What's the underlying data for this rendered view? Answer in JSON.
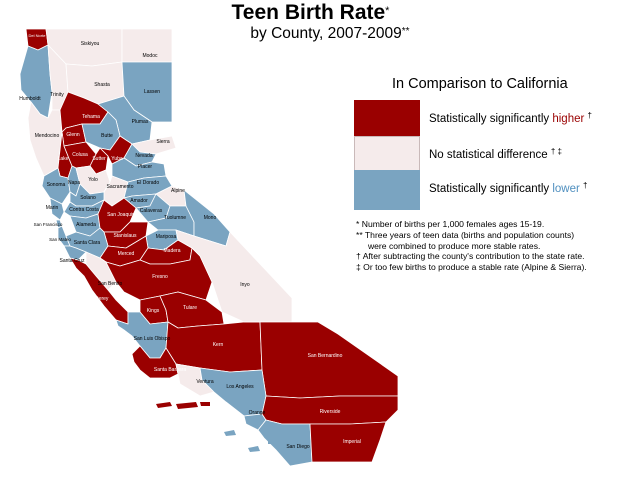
{
  "title": "Teen Birth Rate",
  "title_mark": "*",
  "subtitle": "by County, 2007-2009",
  "subtitle_mark": "**",
  "legend": {
    "title": "In Comparison to California",
    "items": [
      {
        "prefix": "Statistically significantly ",
        "emph": "higher",
        "suffix": " ",
        "mark": "†",
        "status": "high"
      },
      {
        "prefix": "No statistical difference ",
        "emph": "",
        "suffix": "",
        "mark": "† ‡",
        "status": "none"
      },
      {
        "prefix": "Statistically significantly ",
        "emph": "lower",
        "suffix": " ",
        "mark": "†",
        "status": "low"
      }
    ]
  },
  "notes": [
    "*   Number of births per 1,000 females ages 15-19.",
    "** Three years of teen data (births and population counts)",
    "     were combined to produce more stable rates.",
    "†  After subtracting the county's contribution to the state rate.",
    "‡  Or too few births to produce a stable rate (Alpine & Sierra)."
  ],
  "colors": {
    "high": "#9a0000",
    "none": "#f5ebeb",
    "low": "#7aa4c1",
    "border": "#ffffff"
  },
  "counties": {
    "del_norte": {
      "label": "Del Norte",
      "status": "high"
    },
    "siskiyou": {
      "label": "Siskiyou",
      "status": "none"
    },
    "modoc": {
      "label": "Modoc",
      "status": "none"
    },
    "humboldt": {
      "label": "Humboldt",
      "status": "low"
    },
    "trinity": {
      "label": "Trinity",
      "status": "none"
    },
    "shasta": {
      "label": "Shasta",
      "status": "none"
    },
    "lassen": {
      "label": "Lassen",
      "status": "low"
    },
    "mendocino": {
      "label": "Mendocino",
      "status": "none"
    },
    "tehama": {
      "label": "Tehama",
      "status": "high"
    },
    "plumas": {
      "label": "Plumas",
      "status": "low"
    },
    "glenn": {
      "label": "Glenn",
      "status": "high"
    },
    "butte": {
      "label": "Butte",
      "status": "low"
    },
    "sierra": {
      "label": "Sierra",
      "status": "none"
    },
    "lake": {
      "label": "Lake",
      "status": "high"
    },
    "colusa": {
      "label": "Colusa",
      "status": "high"
    },
    "sutter": {
      "label": "Sutter",
      "status": "high"
    },
    "yuba": {
      "label": "Yuba",
      "status": "high"
    },
    "nevada": {
      "label": "Nevada",
      "status": "low"
    },
    "placer": {
      "label": "Placer",
      "status": "low"
    },
    "sonoma": {
      "label": "Sonoma",
      "status": "low"
    },
    "napa": {
      "label": "Napa",
      "status": "low"
    },
    "yolo": {
      "label": "Yolo",
      "status": "none"
    },
    "sacramento": {
      "label": "Sacramento",
      "status": "none"
    },
    "el_dorado": {
      "label": "El Dorado",
      "status": "low"
    },
    "alpine": {
      "label": "Alpine",
      "status": "none"
    },
    "marin": {
      "label": "Marin",
      "status": "low"
    },
    "solano": {
      "label": "Solano",
      "status": "low"
    },
    "amador": {
      "label": "Amador",
      "status": "low"
    },
    "contra_costa": {
      "label": "Contra Costa",
      "status": "low"
    },
    "calaveras": {
      "label": "Calaveras",
      "status": "low"
    },
    "tuolumne": {
      "label": "Tuolumne",
      "status": "low"
    },
    "mono": {
      "label": "Mono",
      "status": "low"
    },
    "san_francisco": {
      "label": "San Francisco",
      "status": "low"
    },
    "alameda": {
      "label": "Alameda",
      "status": "low"
    },
    "san_joaquin": {
      "label": "San Joaquin",
      "status": "high"
    },
    "san_mateo": {
      "label": "San Mateo",
      "status": "low"
    },
    "stanislaus": {
      "label": "Stanislaus",
      "status": "high"
    },
    "mariposa": {
      "label": "Mariposa",
      "status": "low"
    },
    "santa_clara": {
      "label": "Santa Clara",
      "status": "low"
    },
    "merced": {
      "label": "Merced",
      "status": "high"
    },
    "santa_cruz": {
      "label": "Santa Cruz",
      "status": "low"
    },
    "madera": {
      "label": "Madera",
      "status": "high"
    },
    "san_benito": {
      "label": "San Benito",
      "status": "none"
    },
    "fresno": {
      "label": "Fresno",
      "status": "high"
    },
    "inyo": {
      "label": "Inyo",
      "status": "none"
    },
    "monterey": {
      "label": "Monterey",
      "status": "high"
    },
    "kings": {
      "label": "Kings",
      "status": "high"
    },
    "tulare": {
      "label": "Tulare",
      "status": "high"
    },
    "san_luis_obispo": {
      "label": "San Luis Obispo",
      "status": "low"
    },
    "kern": {
      "label": "Kern",
      "status": "high"
    },
    "san_bernardino": {
      "label": "San Bernardino",
      "status": "high"
    },
    "santa_barbara": {
      "label": "Santa Barbara",
      "status": "high"
    },
    "ventura": {
      "label": "Ventura",
      "status": "none"
    },
    "los_angeles": {
      "label": "Los Angeles",
      "status": "low"
    },
    "orange": {
      "label": "Orange",
      "status": "low"
    },
    "riverside": {
      "label": "Riverside",
      "status": "high"
    },
    "san_diego": {
      "label": "San Diego",
      "status": "low"
    },
    "imperial": {
      "label": "Imperial",
      "status": "high"
    }
  }
}
